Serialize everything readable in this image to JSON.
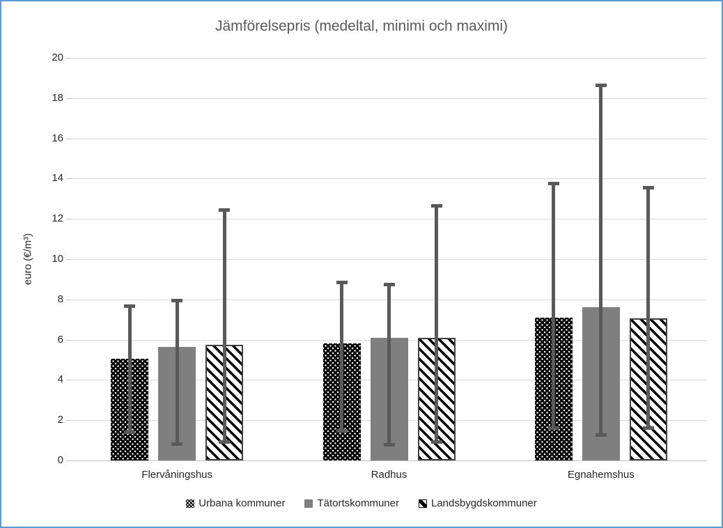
{
  "chart_data": {
    "type": "bar",
    "title": "Jämförelsepris (medeltal, minimi och maximi)",
    "xlabel": "",
    "ylabel": "euro (€/m³)",
    "ylim": [
      0,
      20
    ],
    "ytick_step": 2,
    "grid": true,
    "legend_position": "bottom",
    "error_bars": "min-max",
    "categories": [
      "Flervåningshus",
      "Radhus",
      "Egnahemshus"
    ],
    "series": [
      {
        "name": "Urbana kommuner",
        "pattern": "black-dots",
        "means": [
          5.05,
          5.8,
          7.1
        ],
        "min": [
          1.4,
          1.45,
          1.6
        ],
        "max": [
          7.7,
          8.9,
          13.8
        ]
      },
      {
        "name": "Tätortskommuner",
        "pattern": "solid-gray",
        "means": [
          5.65,
          6.1,
          7.6
        ],
        "min": [
          0.8,
          0.75,
          1.25
        ],
        "max": [
          8.0,
          8.8,
          18.7
        ]
      },
      {
        "name": "Landsbygdskommuner",
        "pattern": "diagonal-stripes",
        "means": [
          5.75,
          6.1,
          7.05
        ],
        "min": [
          0.9,
          0.9,
          1.6
        ],
        "max": [
          12.5,
          12.7,
          13.6
        ]
      }
    ]
  },
  "colors": {
    "frame_border": "#5B9BD5",
    "title_text": "#595959",
    "gridline": "#D9D9D9",
    "axis_text": "#262626",
    "error_bar": "#595959",
    "bar_gray": "#7F7F7F",
    "bar_black": "#000000"
  }
}
